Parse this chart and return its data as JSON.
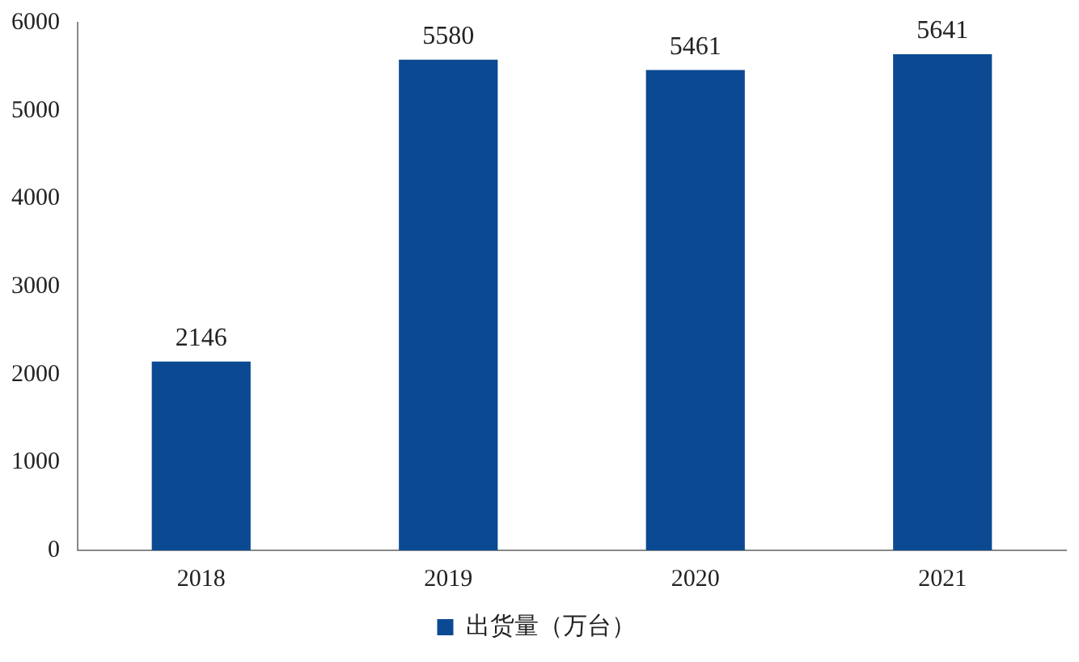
{
  "chart_data": {
    "type": "bar",
    "categories": [
      "2018",
      "2019",
      "2020",
      "2021"
    ],
    "series": [
      {
        "name": "出货量（万台）",
        "color": "#0b4a93",
        "values": [
          2146,
          5580,
          5461,
          5641
        ]
      }
    ],
    "ylim": [
      0,
      6000
    ],
    "yticks": [
      0,
      1000,
      2000,
      3000,
      4000,
      5000,
      6000
    ],
    "grid": false,
    "legend": "bottom",
    "data_labels": true
  }
}
